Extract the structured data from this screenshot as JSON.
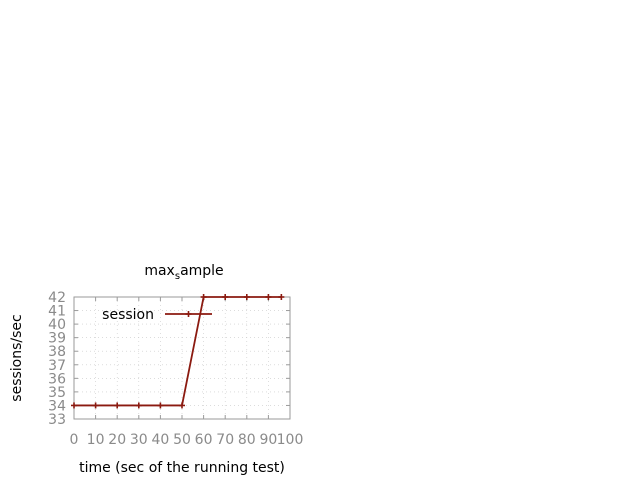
{
  "chart_data": {
    "type": "line",
    "title_main": "max",
    "title_sub": "s",
    "title_rest": "ample",
    "xlabel": "time (sec of the running test)",
    "ylabel": "sessions/sec",
    "xlim": [
      0,
      100
    ],
    "ylim": [
      33,
      42
    ],
    "x_ticks": [
      "0",
      "10",
      "20",
      "30",
      "40",
      "50",
      "60",
      "70",
      "80",
      "90",
      "100"
    ],
    "y_ticks": [
      "33",
      "34",
      "35",
      "36",
      "37",
      "38",
      "39",
      "40",
      "41",
      "42"
    ],
    "grid": true,
    "legend_position": "top-left",
    "series": [
      {
        "name": "session",
        "color": "#8b1a10",
        "marker": "plus",
        "x": [
          0,
          10,
          20,
          30,
          40,
          50,
          60,
          70,
          80,
          90,
          96
        ],
        "y": [
          34,
          34,
          34,
          34,
          34,
          34,
          42,
          42,
          42,
          42,
          42
        ]
      }
    ]
  }
}
